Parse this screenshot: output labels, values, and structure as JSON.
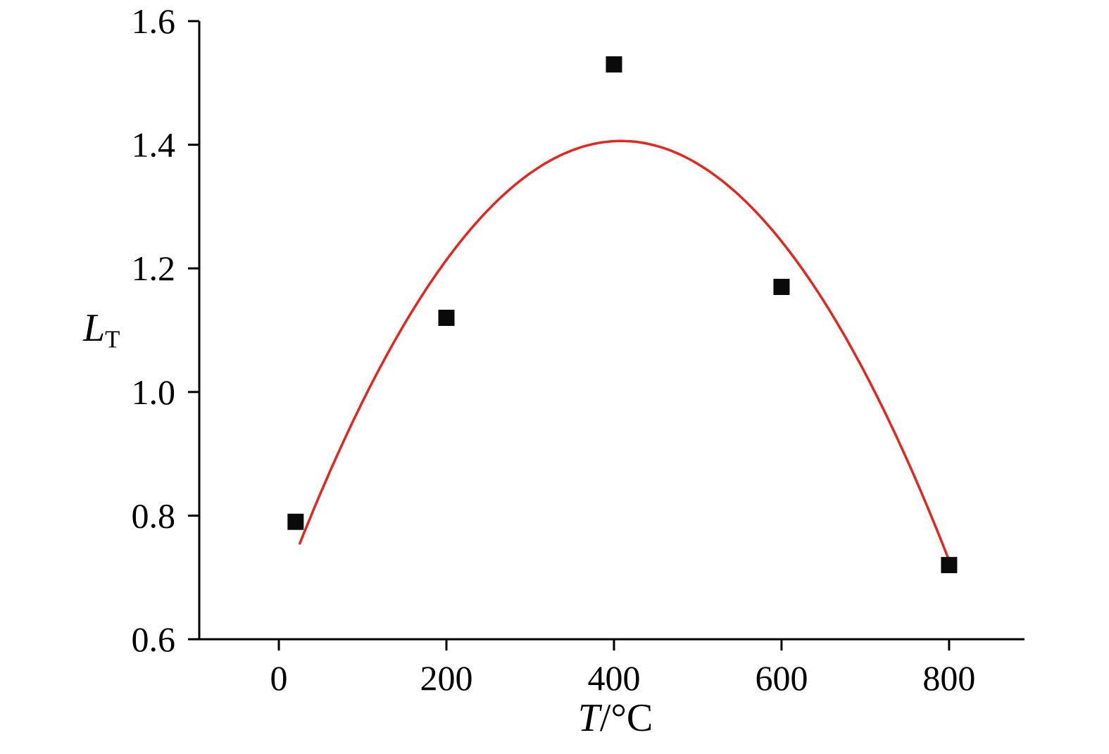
{
  "chart_data": {
    "type": "scatter",
    "title": "",
    "xlabel": "T/°C",
    "ylabel": "LT",
    "xlabel_parts": {
      "var": "T",
      "rest": "/°C"
    },
    "ylabel_parts": {
      "var": "L",
      "sub": "T"
    },
    "xlim": [
      -95,
      890
    ],
    "ylim": [
      0.6,
      1.6
    ],
    "x_ticks": [
      0,
      200,
      400,
      600,
      800
    ],
    "x_tick_labels": [
      "0",
      "200",
      "400",
      "600",
      "800"
    ],
    "y_ticks": [
      0.6,
      0.8,
      1.0,
      1.2,
      1.4,
      1.6
    ],
    "y_tick_labels": [
      "0.6",
      "0.8",
      "1.0",
      "1.2",
      "1.4",
      "1.6"
    ],
    "grid": false,
    "legend": null,
    "series": [
      {
        "name": "measured-points",
        "type": "scatter",
        "marker": "square",
        "color": "#0a0a0a",
        "points": [
          [
            20,
            0.79
          ],
          [
            200,
            1.12
          ],
          [
            400,
            1.53
          ],
          [
            600,
            1.17
          ],
          [
            800,
            0.72
          ]
        ]
      },
      {
        "name": "quadratic-fit",
        "type": "line",
        "color": "#e6251f",
        "anchor_points": [
          [
            25,
            0.755
          ],
          [
            405,
            1.406
          ],
          [
            805,
            0.71
          ]
        ]
      }
    ],
    "colors": {
      "axis": "#000000",
      "marker": "#0a0a0a",
      "curve": "#e6251f",
      "background": "#ffffff"
    }
  }
}
